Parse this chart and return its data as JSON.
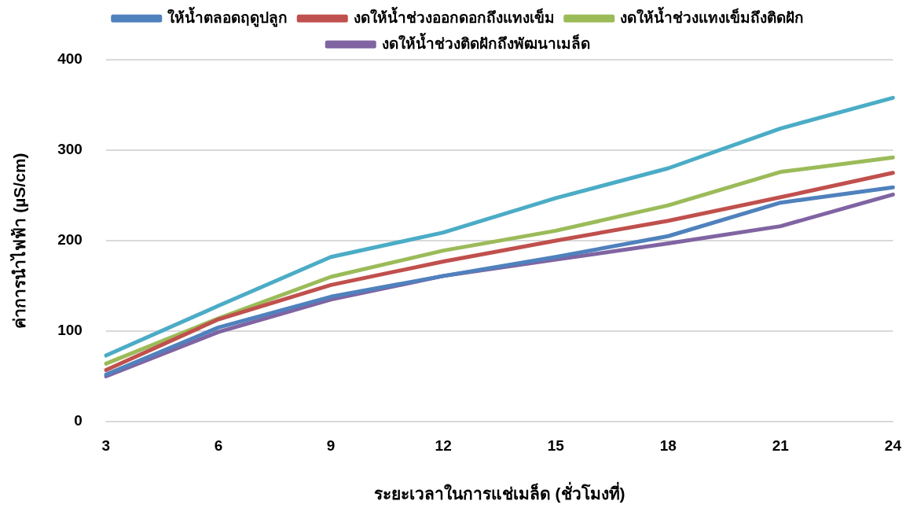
{
  "chart_data": {
    "type": "line",
    "xlabel": "ระยะเวลาในการแช่เมล็ด (ชั่วโมงที่)",
    "ylabel": "ค่าการนำไฟฟ้า (µS/cm)",
    "categories": [
      "3",
      "6",
      "9",
      "12",
      "15",
      "18",
      "21",
      "24"
    ],
    "series": [
      {
        "name": "ให้น้ำตลอดฤดูปลูก",
        "color": "#4f81bd",
        "values": [
          52,
          104,
          138,
          161,
          182,
          205,
          242,
          259
        ]
      },
      {
        "name": "งดให้น้ำช่วงออกดอกถึงแทงเข็ม",
        "color": "#c0504d",
        "values": [
          57,
          113,
          151,
          177,
          200,
          222,
          248,
          275
        ]
      },
      {
        "name": "งดให้น้ำช่วงแทงเข็มถึงติดฝัก",
        "color": "#9bbb59",
        "values": [
          64,
          114,
          160,
          189,
          211,
          239,
          276,
          292
        ]
      },
      {
        "name": "งดให้น้ำช่วงติดฝักถึงพัฒนาเมล็ด",
        "color": "#8064a2",
        "values": [
          50,
          99,
          135,
          161,
          179,
          197,
          216,
          251
        ]
      },
      {
        "color": "#4bacc6",
        "values": [
          73,
          128,
          182,
          209,
          247,
          280,
          324,
          358
        ]
      }
    ],
    "ylim": [
      0,
      400
    ],
    "yticks": [
      0,
      100,
      200,
      300,
      400
    ],
    "grid": "y",
    "legend": "top",
    "marker": "none",
    "line_style": "solid"
  }
}
